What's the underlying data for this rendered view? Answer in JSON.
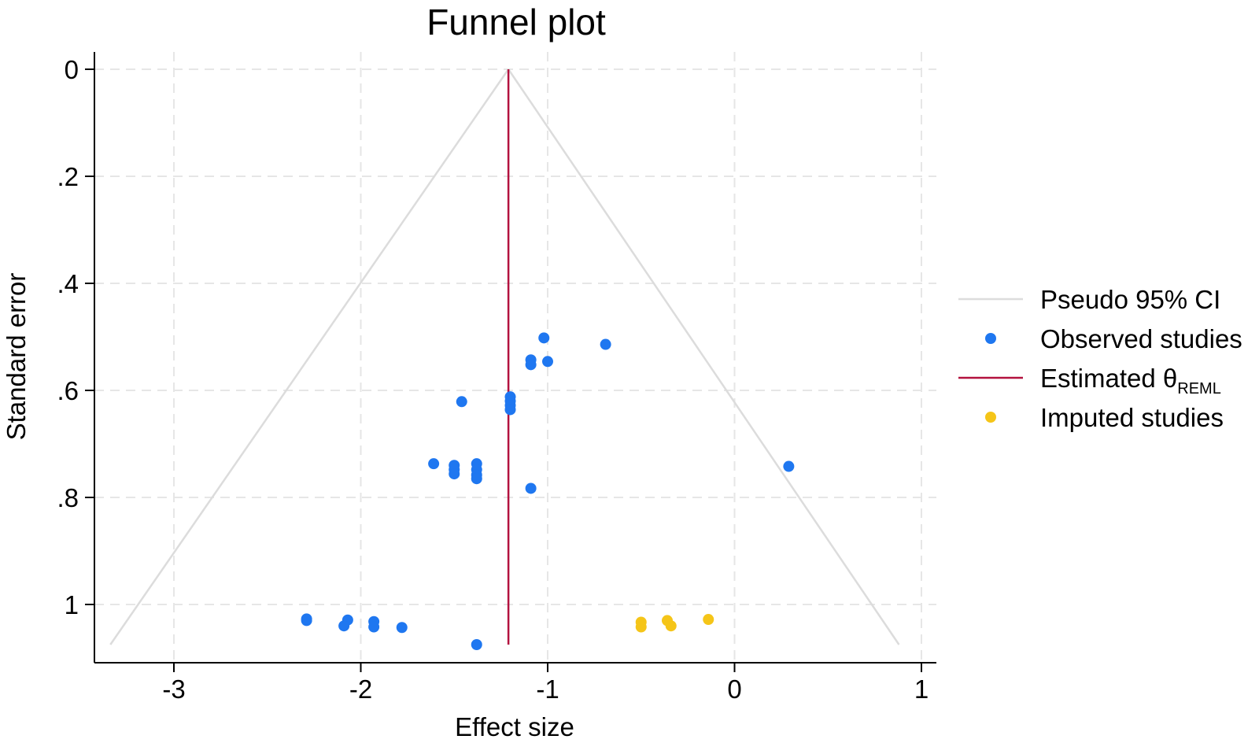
{
  "chart_data": {
    "type": "scatter",
    "title": "Funnel plot",
    "xlabel": "Effect size",
    "ylabel": "Standard error",
    "xlim": [
      -3.42,
      1.1
    ],
    "ylim": [
      0,
      1.11
    ],
    "y_reversed": true,
    "x_ticks": [
      -3,
      -2,
      -1,
      0,
      1
    ],
    "x_tick_labels": [
      "-3",
      "-2",
      "-1",
      "0",
      "1"
    ],
    "y_ticks": [
      0,
      0.2,
      0.4,
      0.6,
      0.8,
      1
    ],
    "y_tick_labels": [
      "0",
      ".2",
      ".4",
      ".6",
      ".8",
      "1"
    ],
    "grid": true,
    "estimate": -1.21,
    "funnel": {
      "apex": [
        -1.21,
        0
      ],
      "se_max": 1.075,
      "left_at_max": -3.34,
      "right_at_max": 0.88
    },
    "series": [
      {
        "name": "Observed studies",
        "color": "#1f77f0",
        "points": [
          [
            -1.02,
            0.502
          ],
          [
            -0.69,
            0.514
          ],
          [
            -1.09,
            0.543
          ],
          [
            -1.09,
            0.552
          ],
          [
            -1.0,
            0.546
          ],
          [
            -1.2,
            0.612
          ],
          [
            -1.2,
            0.62
          ],
          [
            -1.2,
            0.628
          ],
          [
            -1.2,
            0.636
          ],
          [
            -1.46,
            0.621
          ],
          [
            -1.61,
            0.737
          ],
          [
            -1.5,
            0.74
          ],
          [
            -1.5,
            0.748
          ],
          [
            -1.5,
            0.756
          ],
          [
            -1.38,
            0.737
          ],
          [
            -1.38,
            0.748
          ],
          [
            -1.38,
            0.758
          ],
          [
            -1.38,
            0.765
          ],
          [
            -1.09,
            0.783
          ],
          [
            0.29,
            0.742
          ],
          [
            -2.29,
            1.027
          ],
          [
            -2.29,
            1.03
          ],
          [
            -2.07,
            1.029
          ],
          [
            -2.09,
            1.04
          ],
          [
            -1.93,
            1.032
          ],
          [
            -1.93,
            1.042
          ],
          [
            -1.78,
            1.043
          ],
          [
            -1.38,
            1.075
          ]
        ]
      },
      {
        "name": "Imputed studies",
        "color": "#f5c518",
        "points": [
          [
            -0.5,
            1.033
          ],
          [
            -0.5,
            1.042
          ],
          [
            -0.36,
            1.03
          ],
          [
            -0.34,
            1.04
          ],
          [
            -0.14,
            1.028
          ]
        ]
      }
    ],
    "legend": {
      "position": "right",
      "entries": [
        {
          "label": "Pseudo 95% CI",
          "kind": "line",
          "color": "#dcdcdc"
        },
        {
          "label": "Observed studies",
          "kind": "marker",
          "color": "#1f77f0"
        },
        {
          "label": "Estimated θ",
          "subscript": "REML",
          "kind": "line",
          "color": "#b3123f"
        },
        {
          "label": "Imputed studies",
          "kind": "marker",
          "color": "#f5c518"
        }
      ]
    }
  }
}
